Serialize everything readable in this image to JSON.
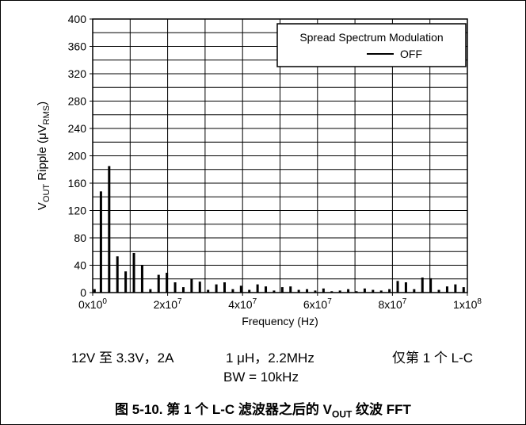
{
  "chart_data": {
    "type": "bar",
    "title": "",
    "xlabel": "Frequency (Hz)",
    "ylabel": {
      "prefix": "V",
      "sub1": "OUT",
      "middle": " Ripple (μV",
      "sub2": "RMS",
      "suffix": ")"
    },
    "xlim": [
      0,
      100000000
    ],
    "ylim": [
      0,
      400
    ],
    "y_ticks": [
      "0",
      "40",
      "80",
      "120",
      "160",
      "200",
      "240",
      "280",
      "320",
      "360",
      "400"
    ],
    "x_ticks": [
      {
        "value": 0,
        "base": "0x10",
        "exp": "0"
      },
      {
        "value": 20000000,
        "base": "2x10",
        "exp": "7"
      },
      {
        "value": 40000000,
        "base": "4x10",
        "exp": "7"
      },
      {
        "value": 60000000,
        "base": "6x10",
        "exp": "7"
      },
      {
        "value": 80000000,
        "base": "8x10",
        "exp": "7"
      },
      {
        "value": 100000000,
        "base": "1x10",
        "exp": "8"
      }
    ],
    "grid": true,
    "legend": {
      "title": "Spread Spectrum Modulation",
      "placement": "top-right"
    },
    "series": [
      {
        "name": "OFF",
        "color": "#000000",
        "x": [
          500000,
          2200000,
          4400000,
          6600000,
          8800000,
          11000000,
          13200000,
          15400000,
          17600000,
          19800000,
          22000000,
          24200000,
          26400000,
          28600000,
          30800000,
          33000000,
          35200000,
          37400000,
          39600000,
          41800000,
          44000000,
          46200000,
          48400000,
          50600000,
          52800000,
          55000000,
          57200000,
          59400000,
          61600000,
          63800000,
          66000000,
          68200000,
          70400000,
          72600000,
          74800000,
          77000000,
          79200000,
          81400000,
          83600000,
          85800000,
          88000000,
          90200000,
          92400000,
          94600000,
          96800000,
          99000000
        ],
        "y": [
          5,
          148,
          185,
          53,
          31,
          58,
          40,
          5,
          26,
          29,
          15,
          8,
          20,
          16,
          4,
          12,
          15,
          5,
          10,
          4,
          12,
          9,
          3,
          8,
          9,
          4,
          5,
          3,
          6,
          2,
          3,
          5,
          2,
          6,
          4,
          3,
          5,
          17,
          15,
          5,
          22,
          21,
          4,
          9,
          12,
          8
        ]
      }
    ]
  },
  "conditions": {
    "line1_a": "12V 至 3.3V，2A",
    "line1_b": "1 μH，2.2MHz",
    "line1_c": "仅第 1 个 L-C",
    "line2": "BW = 10kHz"
  },
  "caption": {
    "prefix": "图 5-10. 第 1 个 L-C 滤波器之后的 V",
    "sub": "OUT",
    "suffix": " 纹波 FFT"
  }
}
